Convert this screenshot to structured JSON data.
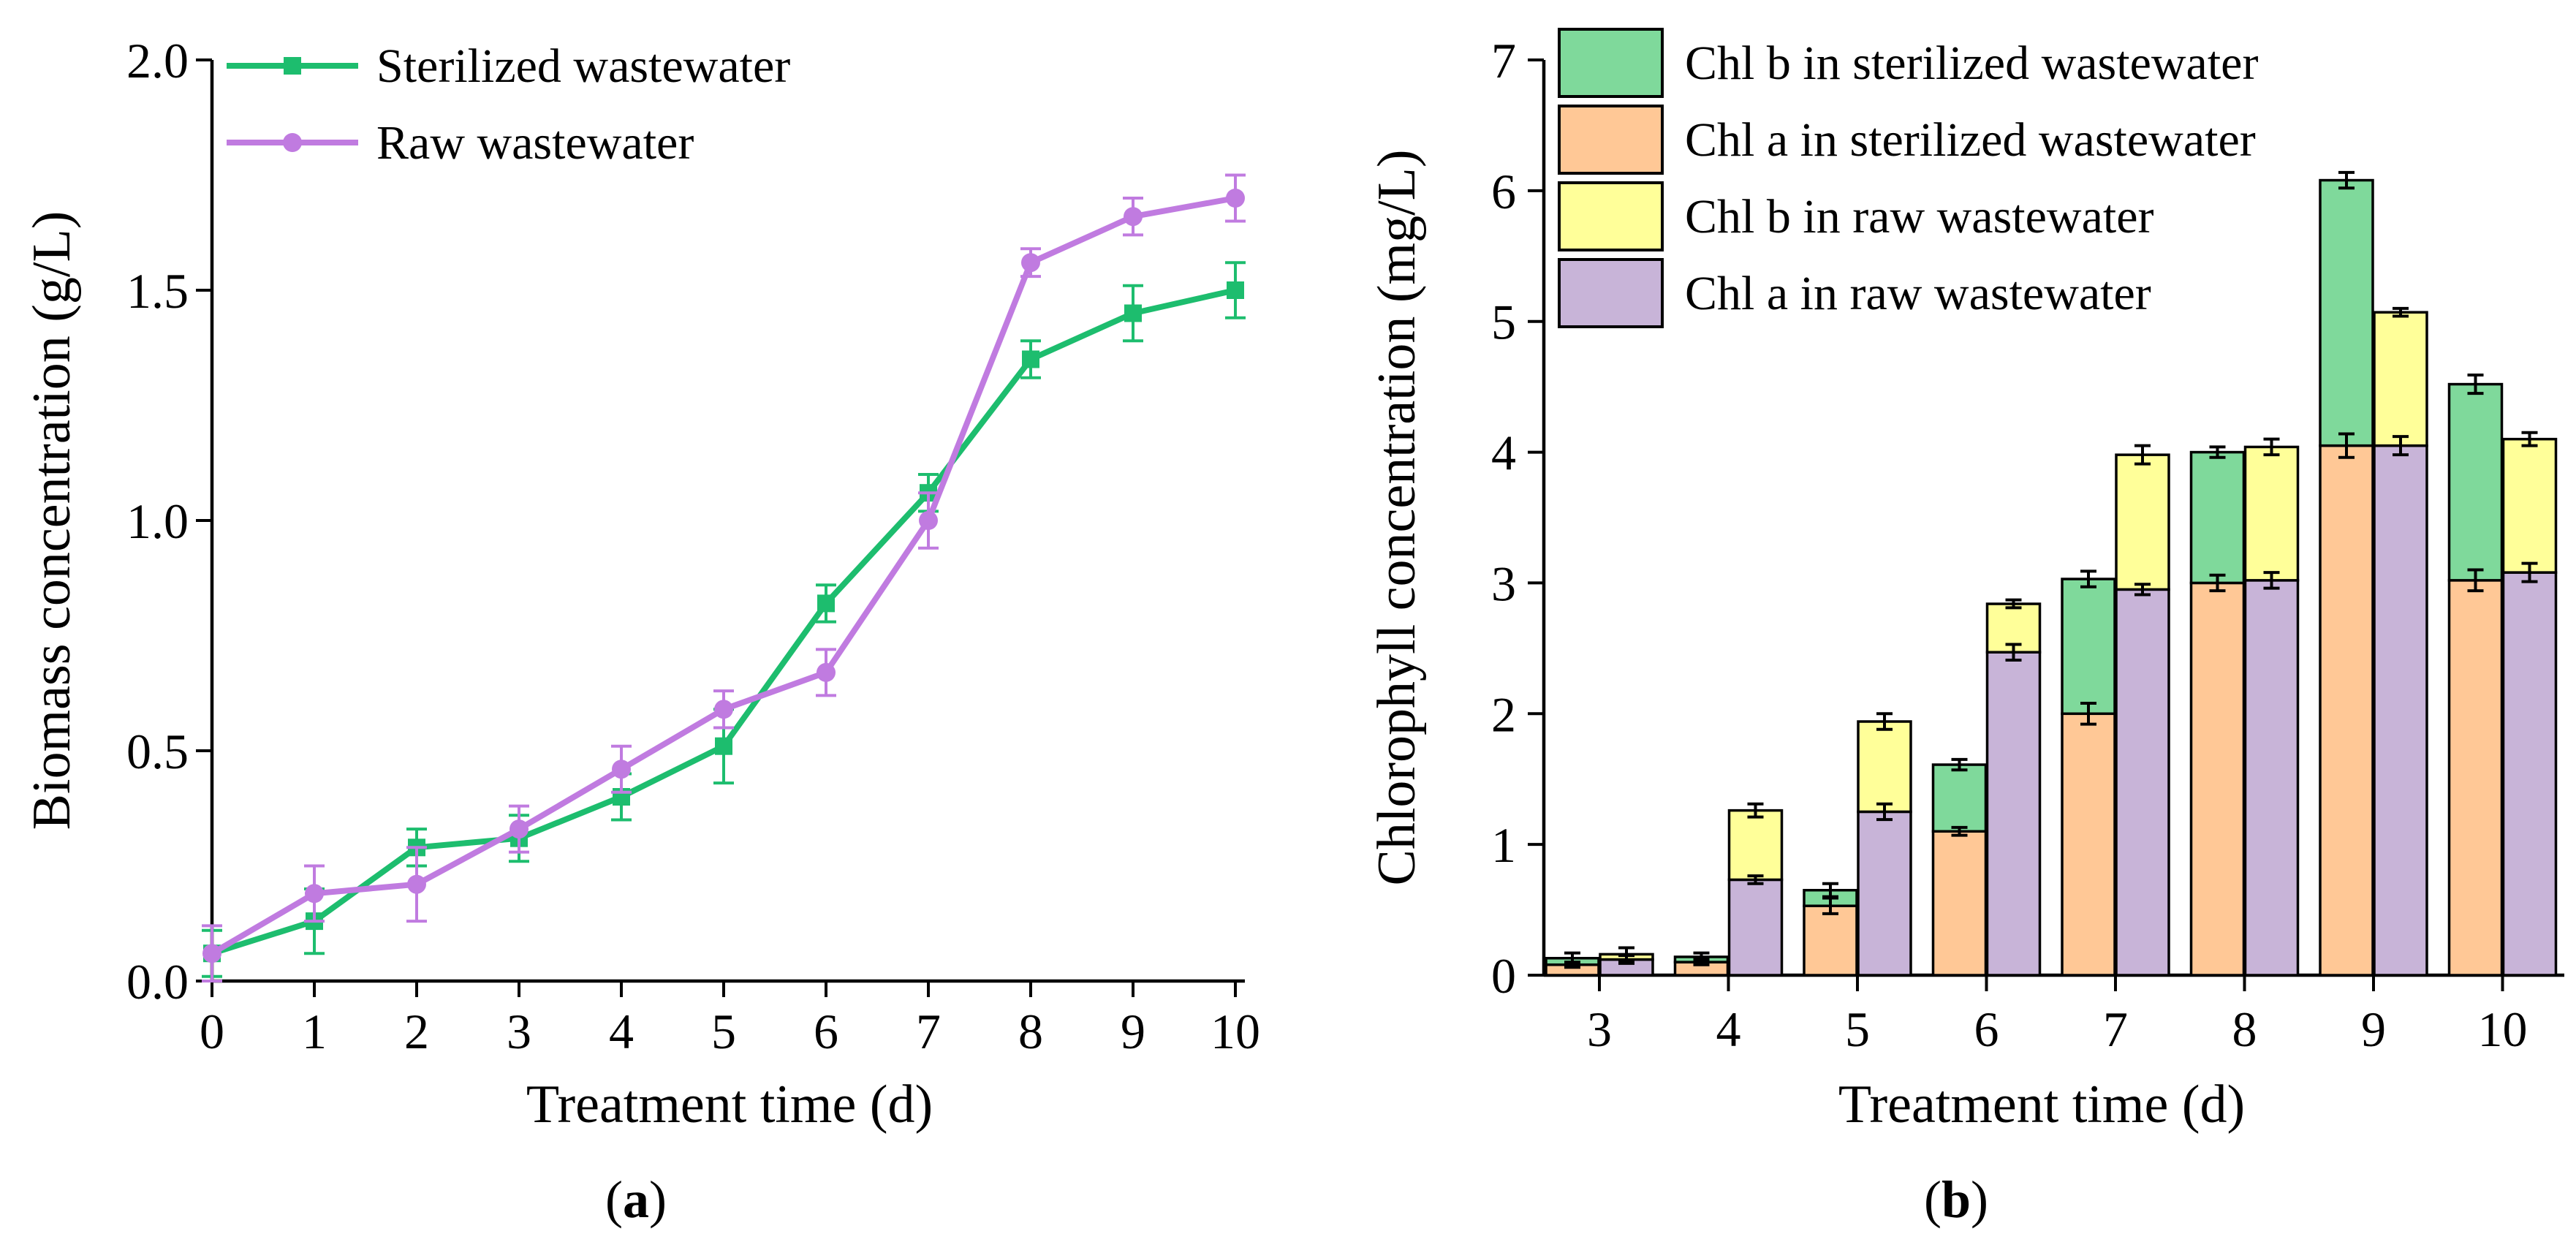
{
  "panels": {
    "a": {
      "prefix": "(",
      "letter": "a",
      "suffix": ")"
    },
    "b": {
      "prefix": "(",
      "letter": "b",
      "suffix": ")"
    }
  },
  "chart_data": [
    {
      "type": "line",
      "panel": "a",
      "xlabel": "Treatment time (d)",
      "ylabel": "Biomass concentration (g/L)",
      "xlim": [
        0,
        10
      ],
      "ylim": [
        0,
        2.0
      ],
      "xticks": [
        "0",
        "1",
        "2",
        "3",
        "4",
        "5",
        "6",
        "7",
        "8",
        "9",
        "10"
      ],
      "yticks": [
        "0.0",
        "0.5",
        "1.0",
        "1.5",
        "2.0"
      ],
      "x": [
        0,
        1,
        2,
        3,
        4,
        5,
        6,
        7,
        8,
        9,
        10
      ],
      "legend_position": "top-left",
      "series": [
        {
          "name": "Sterilized wastewater",
          "color": "#1dbd6e",
          "marker": "square",
          "values": [
            0.06,
            0.13,
            0.29,
            0.31,
            0.4,
            0.51,
            0.82,
            1.06,
            1.35,
            1.45,
            1.5
          ],
          "errors": [
            0.05,
            0.07,
            0.04,
            0.05,
            0.05,
            0.08,
            0.04,
            0.04,
            0.04,
            0.06,
            0.06
          ]
        },
        {
          "name": "Raw wastewater",
          "color": "#c07be0",
          "marker": "circle",
          "values": [
            0.06,
            0.19,
            0.21,
            0.33,
            0.46,
            0.59,
            0.67,
            1.0,
            1.56,
            1.66,
            1.7
          ],
          "errors": [
            0.06,
            0.06,
            0.08,
            0.05,
            0.05,
            0.04,
            0.05,
            0.06,
            0.03,
            0.04,
            0.05
          ]
        }
      ]
    },
    {
      "type": "bar",
      "stacked": true,
      "panel": "b",
      "xlabel": "Treatment time (d)",
      "ylabel": "Chlorophyll concentration  (mg/L)",
      "ylim": [
        0,
        7
      ],
      "yticks": [
        "0",
        "1",
        "2",
        "3",
        "4",
        "5",
        "6",
        "7"
      ],
      "categories": [
        "3",
        "4",
        "5",
        "6",
        "7",
        "8",
        "9",
        "10"
      ],
      "legend_position": "top-left",
      "groups": [
        {
          "name": "sterilized",
          "stack": [
            {
              "name": "Chl a in sterilized wastewater",
              "color": "#ffc896",
              "values": [
                0.08,
                0.1,
                0.53,
                1.1,
                2.0,
                3.0,
                4.05,
                3.02
              ],
              "errors": [
                0.02,
                0.02,
                0.06,
                0.03,
                0.08,
                0.06,
                0.09,
                0.08
              ]
            },
            {
              "name": "Chl b in sterilized wastewater",
              "color": "#7fd99b",
              "values": [
                0.05,
                0.04,
                0.12,
                0.51,
                1.03,
                1.0,
                2.03,
                1.5
              ],
              "errors": [
                0.04,
                0.03,
                0.05,
                0.04,
                0.06,
                0.04,
                0.06,
                0.07
              ]
            }
          ]
        },
        {
          "name": "raw",
          "stack": [
            {
              "name": "Chl a in raw wastewater",
              "color": "#c8b4d8",
              "values": [
                0.12,
                0.73,
                1.25,
                2.47,
                2.95,
                3.02,
                4.05,
                3.08
              ],
              "errors": [
                0.03,
                0.03,
                0.06,
                0.06,
                0.04,
                0.06,
                0.07,
                0.07
              ]
            },
            {
              "name": "Chl b in raw wastewater",
              "color": "#ffff99",
              "values": [
                0.04,
                0.53,
                0.69,
                0.37,
                1.03,
                1.02,
                1.02,
                1.02
              ],
              "errors": [
                0.05,
                0.05,
                0.06,
                0.03,
                0.07,
                0.06,
                0.03,
                0.05
              ]
            }
          ]
        }
      ],
      "legend_order": [
        "Chl b in sterilized wastewater",
        "Chl a in sterilized wastewater",
        "Chl b in raw wastewater",
        "Chl a in raw wastewater"
      ]
    }
  ]
}
